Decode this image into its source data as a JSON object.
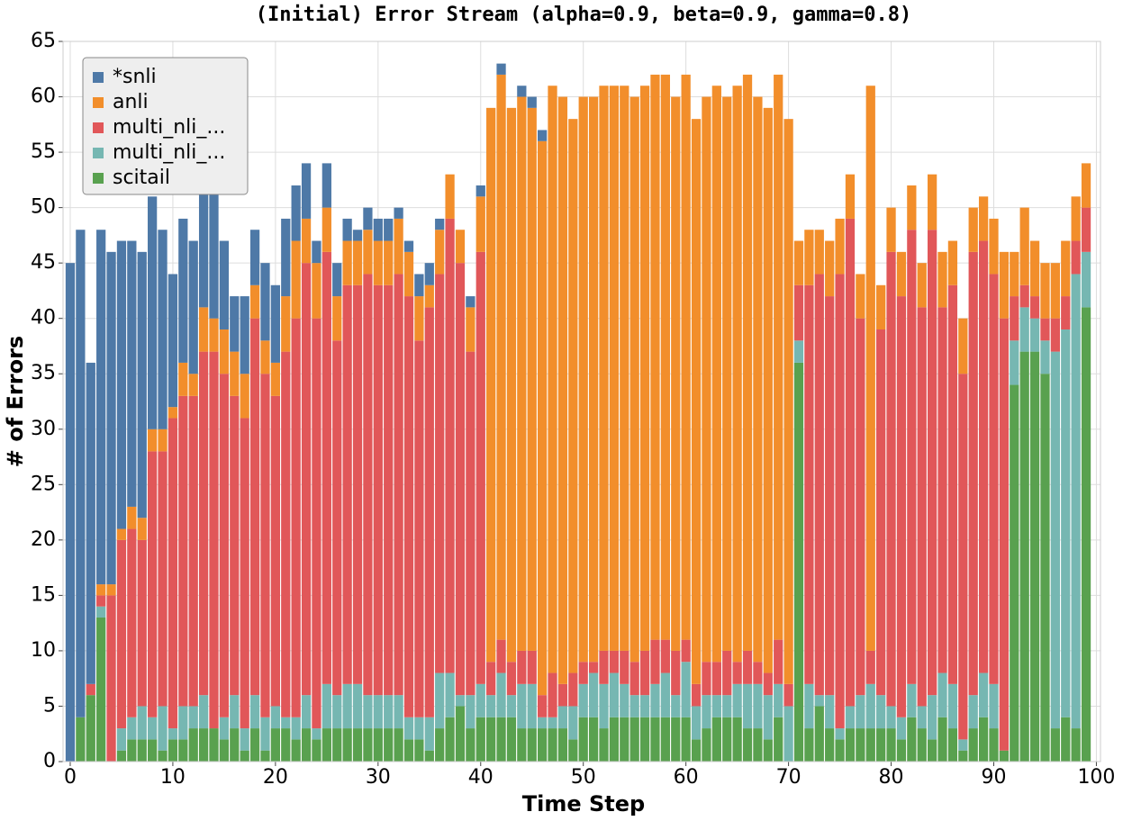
{
  "chart_data": {
    "type": "stacked_bar",
    "title": "(Initial) Error Stream (alpha=0.9, beta=0.9, gamma=0.8)",
    "x_label": "Time Step",
    "y_label": "# of Errors",
    "x": [
      0,
      1,
      2,
      3,
      4,
      5,
      6,
      7,
      8,
      9,
      10,
      11,
      12,
      13,
      14,
      15,
      16,
      17,
      18,
      19,
      20,
      21,
      22,
      23,
      24,
      25,
      26,
      27,
      28,
      29,
      30,
      31,
      32,
      33,
      34,
      35,
      36,
      37,
      38,
      39,
      40,
      41,
      42,
      43,
      44,
      45,
      46,
      47,
      48,
      49,
      50,
      51,
      52,
      53,
      54,
      55,
      56,
      57,
      58,
      59,
      60,
      61,
      62,
      63,
      64,
      65,
      66,
      67,
      68,
      69,
      70,
      71,
      72,
      73,
      74,
      75,
      76,
      77,
      78,
      79,
      80,
      81,
      82,
      83,
      84,
      85,
      86,
      87,
      88,
      89,
      90,
      91,
      92,
      93,
      94,
      95,
      96,
      97,
      98,
      99
    ],
    "series": [
      {
        "name": "*snli",
        "color": "#4e79a7",
        "values": [
          45,
          44,
          29,
          32,
          30,
          26,
          24,
          24,
          21,
          18,
          12,
          13,
          12,
          11,
          12,
          8,
          5,
          7,
          5,
          7,
          7,
          7,
          5,
          5,
          2,
          4,
          3,
          2,
          1,
          2,
          2,
          2,
          1,
          1,
          2,
          2,
          1,
          0,
          0,
          1,
          1,
          0,
          1,
          0,
          1,
          1,
          1,
          0,
          0,
          0,
          0,
          0,
          0,
          0,
          0,
          0,
          0,
          0,
          0,
          0,
          0,
          0,
          0,
          0,
          0,
          0,
          0,
          0,
          0,
          0,
          0,
          0,
          0,
          0,
          0,
          0,
          0,
          0,
          0,
          0,
          0,
          0,
          0,
          0,
          0,
          0,
          0,
          0,
          0,
          0,
          0,
          0,
          0,
          0,
          0,
          0,
          0,
          0,
          0,
          0
        ]
      },
      {
        "name": "anli",
        "color": "#f28e2b",
        "values": [
          0,
          0,
          0,
          1,
          1,
          1,
          2,
          2,
          2,
          2,
          1,
          3,
          2,
          4,
          3,
          4,
          4,
          4,
          3,
          3,
          3,
          5,
          7,
          4,
          5,
          4,
          4,
          4,
          4,
          4,
          4,
          4,
          5,
          4,
          4,
          2,
          4,
          4,
          3,
          4,
          5,
          50,
          51,
          50,
          50,
          49,
          50,
          53,
          53,
          50,
          51,
          51,
          51,
          51,
          51,
          51,
          51,
          51,
          51,
          50,
          51,
          51,
          51,
          52,
          50,
          52,
          52,
          51,
          51,
          51,
          51,
          4,
          5,
          4,
          5,
          5,
          4,
          4,
          51,
          4,
          4,
          4,
          4,
          4,
          5,
          5,
          4,
          5,
          4,
          4,
          5,
          6,
          4,
          7,
          5,
          5,
          5,
          5,
          4,
          4
        ]
      },
      {
        "name": "multi_nli_...",
        "color": "#e15759",
        "values": [
          0,
          0,
          1,
          1,
          15,
          17,
          17,
          15,
          24,
          23,
          28,
          28,
          28,
          31,
          34,
          31,
          27,
          28,
          34,
          31,
          28,
          33,
          36,
          39,
          37,
          39,
          32,
          36,
          36,
          38,
          37,
          37,
          38,
          38,
          34,
          37,
          36,
          41,
          39,
          31,
          39,
          3,
          3,
          3,
          3,
          3,
          2,
          4,
          2,
          3,
          2,
          1,
          3,
          2,
          3,
          3,
          4,
          4,
          3,
          4,
          2,
          2,
          3,
          3,
          4,
          2,
          3,
          2,
          2,
          4,
          2,
          5,
          36,
          38,
          36,
          41,
          44,
          34,
          3,
          33,
          41,
          38,
          41,
          36,
          42,
          33,
          36,
          33,
          40,
          39,
          37,
          39,
          4,
          2,
          2,
          2,
          3,
          3,
          3,
          4
        ]
      },
      {
        "name": "multi_nli_...",
        "color": "#76b7b2",
        "values": [
          0,
          0,
          0,
          1,
          0,
          2,
          2,
          3,
          2,
          4,
          1,
          3,
          2,
          3,
          0,
          2,
          3,
          2,
          3,
          3,
          2,
          1,
          2,
          3,
          1,
          4,
          3,
          4,
          4,
          3,
          3,
          3,
          3,
          2,
          2,
          3,
          5,
          4,
          1,
          3,
          3,
          2,
          4,
          2,
          4,
          4,
          1,
          1,
          2,
          3,
          3,
          4,
          4,
          4,
          3,
          2,
          2,
          3,
          4,
          2,
          5,
          3,
          3,
          2,
          2,
          3,
          4,
          4,
          4,
          3,
          5,
          2,
          4,
          1,
          3,
          1,
          2,
          3,
          4,
          3,
          2,
          2,
          3,
          2,
          4,
          4,
          4,
          1,
          3,
          4,
          4,
          0,
          4,
          4,
          3,
          3,
          34,
          35,
          41,
          5
        ]
      },
      {
        "name": "scitail",
        "color": "#59a14f",
        "values": [
          0,
          4,
          6,
          13,
          0,
          1,
          2,
          2,
          2,
          1,
          2,
          2,
          3,
          3,
          3,
          2,
          3,
          1,
          3,
          1,
          3,
          3,
          2,
          3,
          2,
          3,
          3,
          3,
          3,
          3,
          3,
          3,
          3,
          2,
          2,
          1,
          3,
          4,
          5,
          3,
          4,
          4,
          4,
          4,
          3,
          3,
          3,
          3,
          3,
          2,
          4,
          4,
          3,
          4,
          4,
          4,
          4,
          4,
          4,
          4,
          4,
          2,
          3,
          4,
          4,
          4,
          3,
          3,
          2,
          4,
          0,
          36,
          3,
          5,
          3,
          2,
          3,
          3,
          3,
          3,
          3,
          2,
          4,
          3,
          2,
          4,
          3,
          1,
          3,
          4,
          3,
          1,
          34,
          37,
          37,
          35,
          3,
          4,
          3,
          41
        ]
      }
    ],
    "xlim": [
      -0.7,
      100.4
    ],
    "xticks": [
      0,
      10,
      20,
      30,
      40,
      50,
      60,
      70,
      80,
      90,
      100
    ],
    "ylim": [
      0,
      65
    ],
    "yticks": [
      0,
      5,
      10,
      15,
      20,
      25,
      30,
      35,
      40,
      45,
      50,
      55,
      60,
      65
    ],
    "grid": true,
    "legend": "upper left"
  }
}
